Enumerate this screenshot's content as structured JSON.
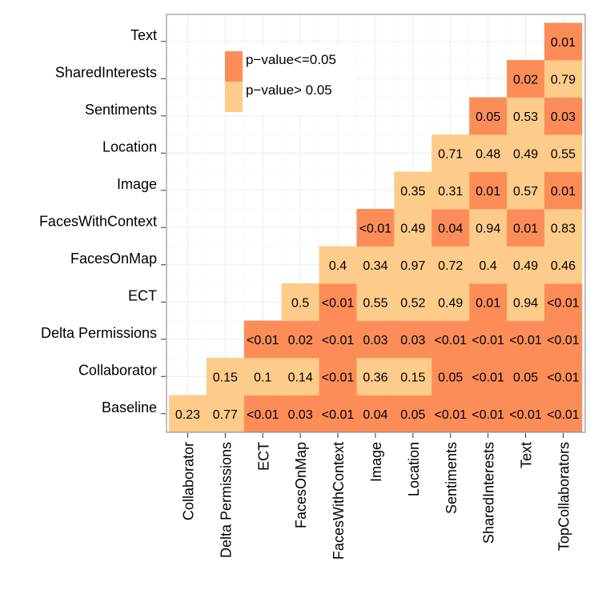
{
  "chart_data": {
    "type": "heatmap",
    "title": "",
    "xlabel": "",
    "ylabel": "",
    "rows": [
      "Baseline",
      "Collaborator",
      "Delta Permissions",
      "ECT",
      "FacesOnMap",
      "FacesWithContext",
      "Image",
      "Location",
      "Sentiments",
      "SharedInterests",
      "Text"
    ],
    "columns": [
      "Collaborator",
      "Delta Permissions",
      "ECT",
      "FacesOnMap",
      "FacesWithContext",
      "Image",
      "Location",
      "Sentiments",
      "SharedInterests",
      "Text",
      "TopCollaborators"
    ],
    "cells": [
      [
        "0.23",
        "0.77",
        "<0.01",
        "0.03",
        "<0.01",
        "0.04",
        "0.05",
        "<0.01",
        "<0.01",
        "<0.01",
        "<0.01"
      ],
      [
        null,
        "0.15",
        "0.1",
        "0.14",
        "<0.01",
        "0.36",
        "0.15",
        "0.05",
        "<0.01",
        "0.05",
        "<0.01"
      ],
      [
        null,
        null,
        "<0.01",
        "0.02",
        "<0.01",
        "0.03",
        "0.03",
        "<0.01",
        "<0.01",
        "<0.01",
        "<0.01"
      ],
      [
        null,
        null,
        null,
        "0.5",
        "<0.01",
        "0.55",
        "0.52",
        "0.49",
        "0.01",
        "0.94",
        "<0.01"
      ],
      [
        null,
        null,
        null,
        null,
        "0.4",
        "0.34",
        "0.97",
        "0.72",
        "0.4",
        "0.49",
        "0.46"
      ],
      [
        null,
        null,
        null,
        null,
        null,
        "<0.01",
        "0.49",
        "0.04",
        "0.94",
        "0.01",
        "0.83"
      ],
      [
        null,
        null,
        null,
        null,
        null,
        null,
        "0.35",
        "0.31",
        "0.01",
        "0.57",
        "0.01"
      ],
      [
        null,
        null,
        null,
        null,
        null,
        null,
        null,
        "0.71",
        "0.48",
        "0.49",
        "0.55"
      ],
      [
        null,
        null,
        null,
        null,
        null,
        null,
        null,
        null,
        "0.05",
        "0.53",
        "0.03"
      ],
      [
        null,
        null,
        null,
        null,
        null,
        null,
        null,
        null,
        null,
        "0.02",
        "0.79"
      ],
      [
        null,
        null,
        null,
        null,
        null,
        null,
        null,
        null,
        null,
        null,
        "0.01"
      ]
    ],
    "legend": {
      "position": "top-left",
      "entries": [
        {
          "label": "p−value<=0.05",
          "color": "#fc8d59"
        },
        {
          "label": "p−value> 0.05",
          "color": "#fdcc8a"
        }
      ]
    },
    "grid": true
  },
  "colors": {
    "significant": "#fc8d59",
    "not_significant": "#fdcc8a",
    "gridline": "#ebebeb",
    "panel_border": "#7f7f7f",
    "text": "#000000"
  }
}
